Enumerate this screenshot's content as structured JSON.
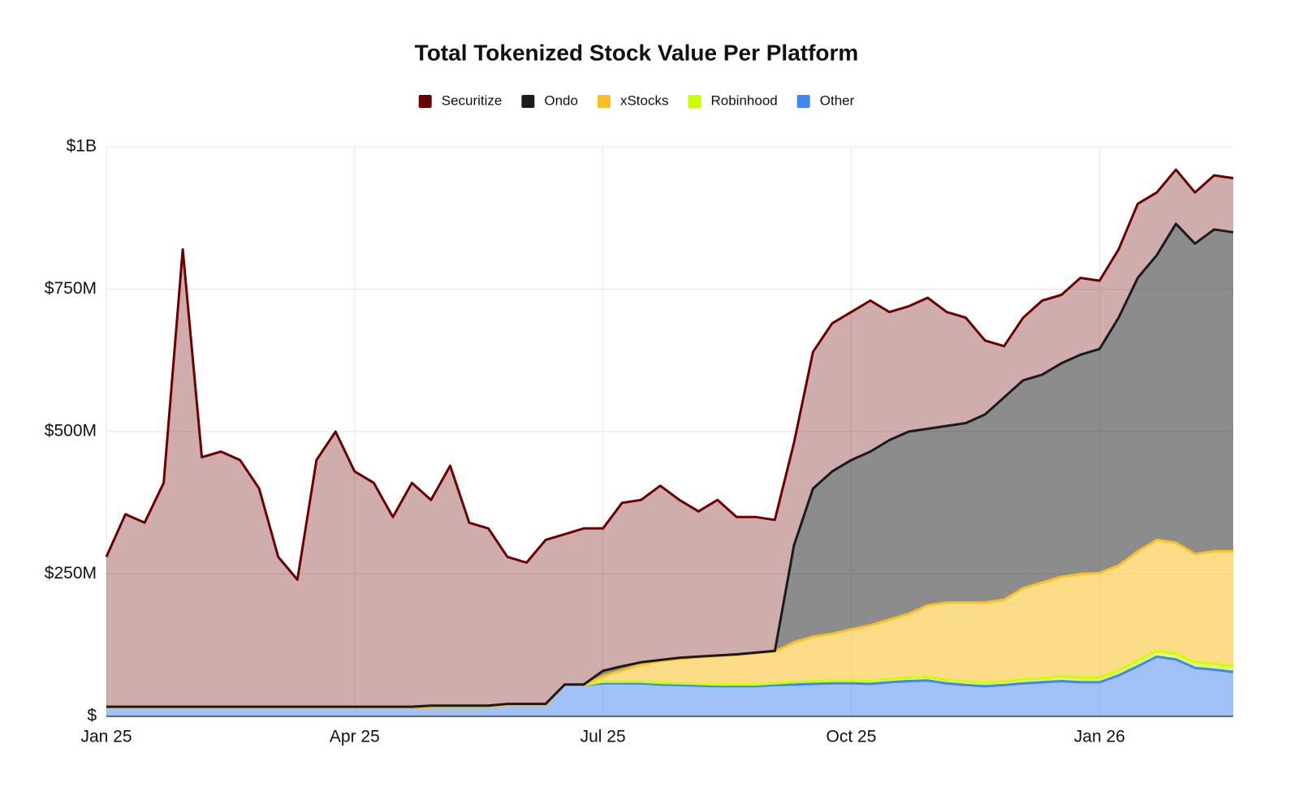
{
  "chart_data": {
    "type": "area",
    "stacked": true,
    "title": "Total Tokenized Stock Value Per Platform",
    "categories": [
      "Jan 25",
      null,
      null,
      null,
      null,
      null,
      null,
      null,
      null,
      null,
      null,
      null,
      null,
      "Apr 25",
      null,
      null,
      null,
      null,
      null,
      null,
      null,
      null,
      null,
      null,
      null,
      null,
      "Jul 25",
      null,
      null,
      null,
      null,
      null,
      null,
      null,
      null,
      null,
      null,
      null,
      null,
      "Oct 25",
      null,
      null,
      null,
      null,
      null,
      null,
      null,
      null,
      null,
      null,
      null,
      null,
      "Jan 26",
      null,
      null,
      null,
      null,
      null,
      null,
      null
    ],
    "ylim": [
      0,
      1000000000.0
    ],
    "yticks": [
      {
        "value": 0,
        "label": "$"
      },
      {
        "value": 250000000.0,
        "label": "$250M"
      },
      {
        "value": 500000000.0,
        "label": "$500M"
      },
      {
        "value": 750000000.0,
        "label": "$750M"
      },
      {
        "value": 1000000000.0,
        "label": "$1B"
      }
    ],
    "grid": true,
    "legend": "top",
    "series": [
      {
        "name": "Securitize",
        "color": "#6b0000",
        "values": [
          263000000.0,
          338000000.0,
          323000000.0,
          393000000.0,
          803000000.0,
          438000000.0,
          448000000.0,
          433000000.0,
          383000000.0,
          263000000.0,
          223000000.0,
          433000000.0,
          483000000.0,
          413000000.0,
          393000000.0,
          333000000.0,
          393000000.0,
          361000000.0,
          421000000.0,
          321000000.0,
          311000000.0,
          258000000.0,
          248000000.0,
          288000000.0,
          264000000.0,
          274000000.0,
          250000000.0,
          287000000.0,
          285000000.0,
          306000000.0,
          277000000.0,
          255000000.0,
          273000000.0,
          241000000.0,
          238000000.0,
          230000000.0,
          180000000.0,
          240000000.0,
          260000000.0,
          260000000.0,
          265000000.0,
          225000000.0,
          220000000.0,
          230000000.0,
          200000000.0,
          185000000.0,
          130000000.0,
          90000000.0,
          110000000.0,
          130000000.0,
          120000000.0,
          135000000.0,
          120000000.0,
          120000000.0,
          130000000.0,
          110000000.0,
          95000000.0,
          90000000.0,
          95000000.0,
          95000000.0
        ]
      },
      {
        "name": "Ondo",
        "color": "#1a1a1a",
        "values": [
          2000000.0,
          2000000.0,
          2000000.0,
          2000000.0,
          2000000.0,
          2000000.0,
          2000000.0,
          2000000.0,
          2000000.0,
          2000000.0,
          2000000.0,
          2000000.0,
          2000000.0,
          2000000.0,
          2000000.0,
          2000000.0,
          2000000.0,
          2000000.0,
          2000000.0,
          2000000.0,
          2000000.0,
          2000000.0,
          2000000.0,
          2000000.0,
          1000000.0,
          1000000.0,
          9000000.0,
          7000000.0,
          4000000.0,
          2000000.0,
          2000000.0,
          1000000.0,
          1000000.0,
          1000000.0,
          1000000.0,
          1000000.0,
          170000000.0,
          260000000.0,
          285000000.0,
          297000000.0,
          305000000.0,
          315000000.0,
          320000000.0,
          310000000.0,
          310000000.0,
          315000000.0,
          330000000.0,
          355000000.0,
          365000000.0,
          365000000.0,
          375000000.0,
          385000000.0,
          393000000.0,
          435000000.0,
          480000000.0,
          500000000.0,
          560000000.0,
          545000000.0,
          565000000.0,
          560000000.0
        ]
      },
      {
        "name": "xStocks",
        "color": "#fbbf24",
        "values": [
          0,
          0,
          0,
          0,
          0,
          0,
          0,
          0,
          0,
          0,
          0,
          0,
          0,
          0,
          0,
          0,
          0,
          0,
          0,
          0,
          0,
          0,
          0,
          0,
          0,
          0,
          10000000.0,
          20000000.0,
          30000000.0,
          38000000.0,
          43000000.0,
          47000000.0,
          50000000.0,
          52000000.0,
          55000000.0,
          56000000.0,
          70000000.0,
          78000000.0,
          82000000.0,
          90000000.0,
          98000000.0,
          104000000.0,
          112000000.0,
          126000000.0,
          136000000.0,
          139000000.0,
          141000000.0,
          144000000.0,
          160000000.0,
          168000000.0,
          175000000.0,
          182000000.0,
          184000000.0,
          184000000.0,
          192000000.0,
          195000000.0,
          195000000.0,
          190000000.0,
          198000000.0,
          202000000.0
        ]
      },
      {
        "name": "Robinhood",
        "color": "#ccff00",
        "values": [
          0,
          0,
          0,
          0,
          0,
          0,
          0,
          0,
          0,
          0,
          0,
          0,
          0,
          0,
          0,
          0,
          0,
          0,
          0,
          0,
          0,
          0,
          0,
          0,
          0,
          0,
          3000000.0,
          3000000.0,
          3000000.0,
          3000000.0,
          3000000.0,
          3000000.0,
          3000000.0,
          3000000.0,
          3000000.0,
          3000000.0,
          4000000.0,
          5000000.0,
          5000000.0,
          5000000.0,
          5000000.0,
          6000000.0,
          6000000.0,
          6000000.0,
          6000000.0,
          6000000.0,
          6000000.0,
          6000000.0,
          7000000.0,
          7000000.0,
          8000000.0,
          8000000.0,
          8000000.0,
          9000000.0,
          10000000.0,
          10000000.0,
          10000000.0,
          10000000.0,
          10000000.0,
          10000000.0
        ]
      },
      {
        "name": "Other",
        "color": "#4285f4",
        "values": [
          15000000.0,
          15000000.0,
          15000000.0,
          15000000.0,
          15000000.0,
          15000000.0,
          15000000.0,
          15000000.0,
          15000000.0,
          15000000.0,
          15000000.0,
          15000000.0,
          15000000.0,
          15000000.0,
          15000000.0,
          15000000.0,
          15000000.0,
          17000000.0,
          17000000.0,
          17000000.0,
          17000000.0,
          20000000.0,
          20000000.0,
          20000000.0,
          55000000.0,
          55000000.0,
          58000000.0,
          58000000.0,
          58000000.0,
          56000000.0,
          55000000.0,
          54000000.0,
          53000000.0,
          53000000.0,
          53000000.0,
          55000000.0,
          56000000.0,
          57000000.0,
          58000000.0,
          58000000.0,
          57000000.0,
          60000000.0,
          62000000.0,
          63000000.0,
          58000000.0,
          55000000.0,
          53000000.0,
          55000000.0,
          58000000.0,
          60000000.0,
          62000000.0,
          60000000.0,
          60000000.0,
          72000000.0,
          88000000.0,
          105000000.0,
          100000000.0,
          85000000.0,
          82000000.0,
          78000000.0
        ]
      }
    ]
  }
}
